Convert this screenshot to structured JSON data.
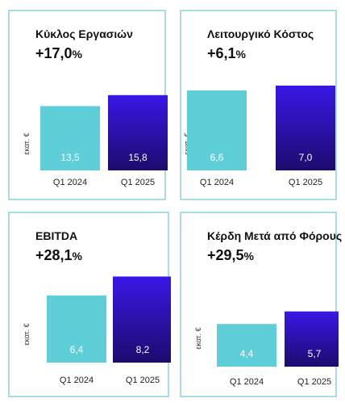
{
  "unit_label": "εκατ. €",
  "colors": {
    "bar_2024": "#5ecfd8",
    "bar_2025_top": "#3a17e6",
    "bar_2025_bottom": "#1e0b6e",
    "border": "#a7dde3"
  },
  "cards": [
    {
      "title": "Κύκλος Εργασιών",
      "change": "+17,0",
      "unit": "%"
    },
    {
      "title": "Λειτουργικό Κόστος",
      "change": "+6,1",
      "unit": "%"
    },
    {
      "title": "EBITDA",
      "change": "+28,1",
      "unit": "%"
    },
    {
      "title": "Κέρδη Μετά από Φόρους",
      "change": "+29,5",
      "unit": "%"
    }
  ],
  "chart_data": [
    {
      "type": "bar",
      "title": "Κύκλος Εργασιών",
      "categories": [
        "Q1 2024",
        "Q1 2025"
      ],
      "values": [
        13.5,
        15.8
      ],
      "value_labels": [
        "13,5",
        "15,8"
      ],
      "ylabel": "εκατ. €"
    },
    {
      "type": "bar",
      "title": "Λειτουργικό Κόστος",
      "categories": [
        "Q1 2024",
        "Q1 2025"
      ],
      "values": [
        6.6,
        7.0
      ],
      "value_labels": [
        "6,6",
        "7,0"
      ],
      "ylabel": "εκατ. €"
    },
    {
      "type": "bar",
      "title": "EBITDA",
      "categories": [
        "Q1 2024",
        "Q1 2025"
      ],
      "values": [
        6.4,
        8.2
      ],
      "value_labels": [
        "6,4",
        "8,2"
      ],
      "ylabel": "εκατ. €"
    },
    {
      "type": "bar",
      "title": "Κέρδη Μετά από Φόρους",
      "categories": [
        "Q1 2024",
        "Q1 2025"
      ],
      "values": [
        4.4,
        5.7
      ],
      "value_labels": [
        "4,4",
        "5,7"
      ],
      "ylabel": "εκατ. €"
    }
  ]
}
